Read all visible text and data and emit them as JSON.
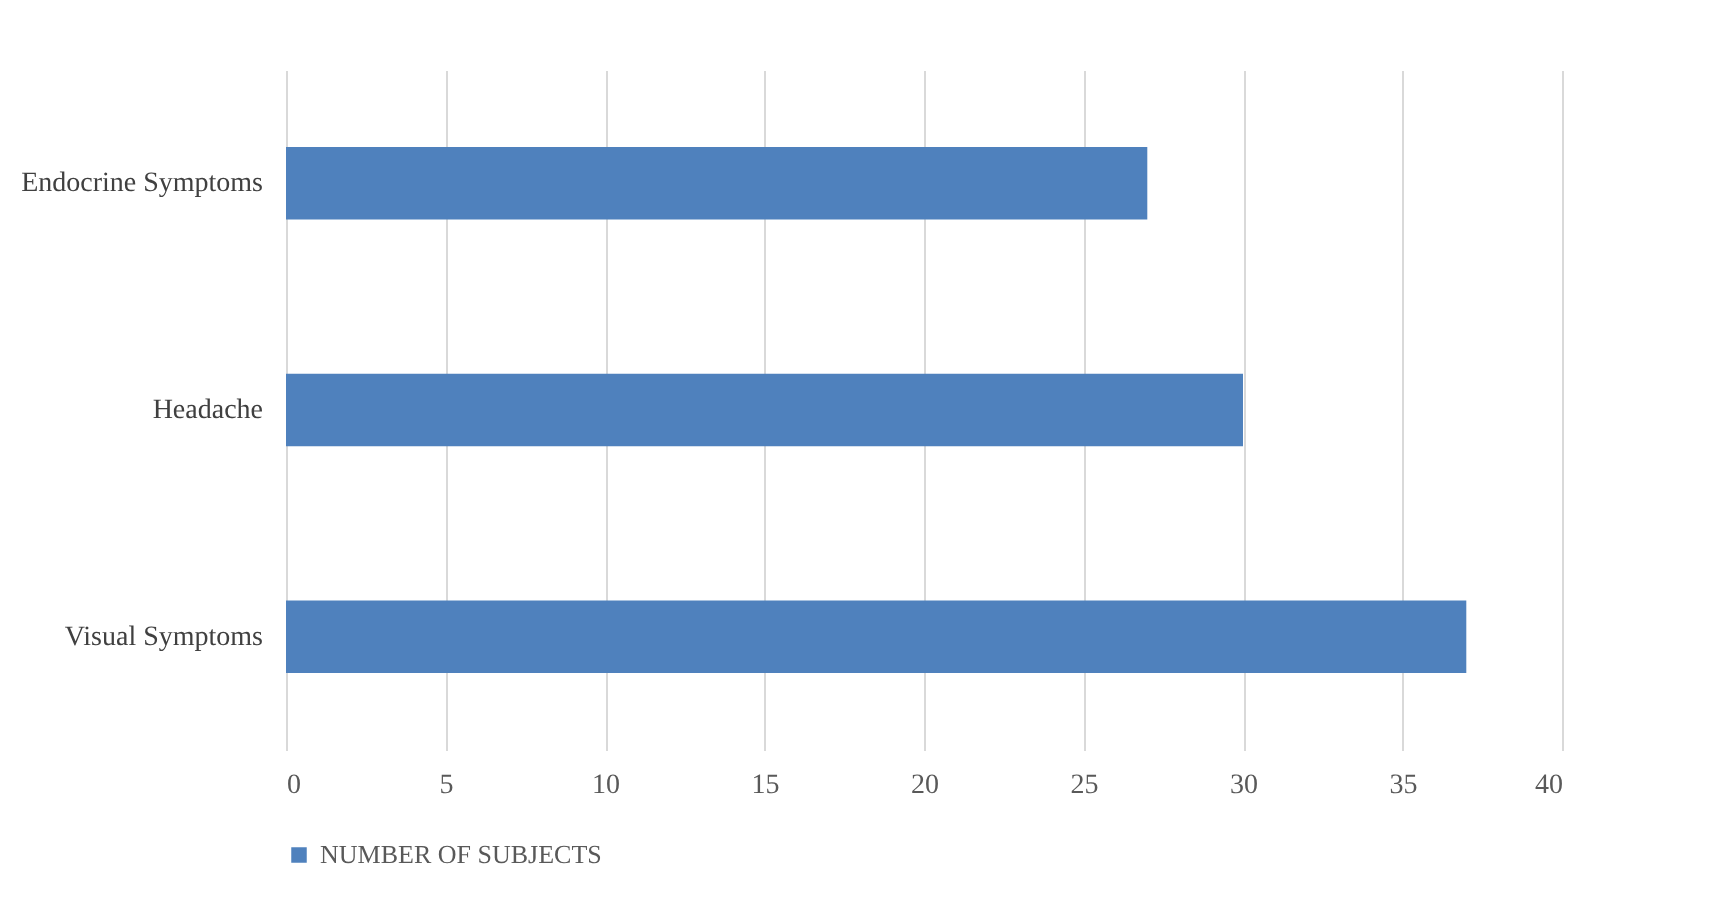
{
  "chart_data": {
    "type": "bar",
    "orientation": "horizontal",
    "categories": [
      "Endocrine Symptoms",
      "Headache",
      "Visual Symptoms"
    ],
    "series": [
      {
        "name": "NUMBER OF SUBJECTS",
        "color": "#4f81bd",
        "values": [
          27,
          30,
          37
        ]
      }
    ],
    "xlim": [
      0,
      40
    ],
    "xticks": [
      0,
      5,
      10,
      15,
      20,
      25,
      30,
      35,
      40
    ],
    "grid": "x",
    "legend": "bottom"
  }
}
